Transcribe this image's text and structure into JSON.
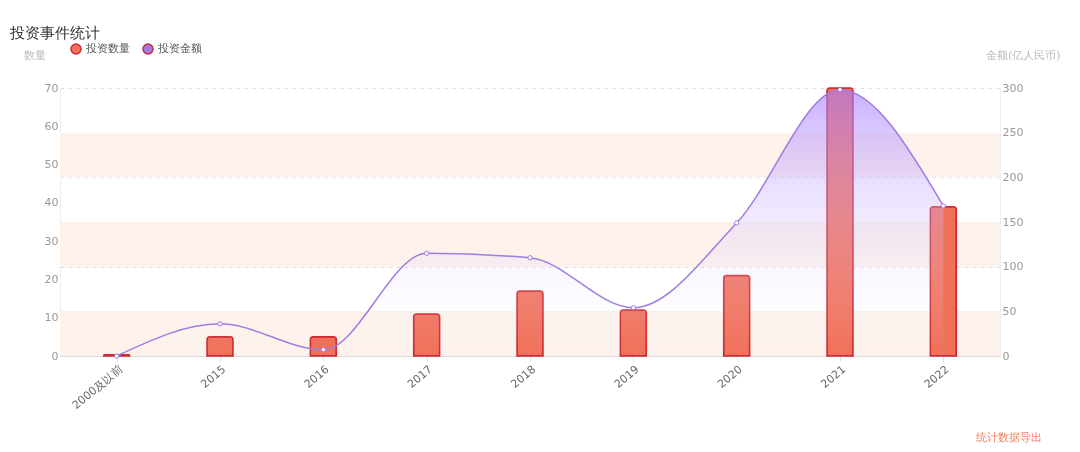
{
  "chart_data": {
    "type": "bar",
    "title": "投资事件统计",
    "categories": [
      "2000及以前",
      "2015",
      "2016",
      "2017",
      "2018",
      "2019",
      "2020",
      "2021",
      "2022"
    ],
    "series": [
      {
        "name": "投资数量",
        "color": "#f0705a",
        "values": [
          0.3,
          5,
          5,
          11,
          17,
          12,
          21,
          70,
          39
        ]
      },
      {
        "name": "投资金额",
        "type": "area",
        "axis": "y2",
        "color": "#a07ce0",
        "values": [
          0,
          36,
          7,
          115,
          110,
          54,
          149,
          298,
          168
        ]
      }
    ],
    "ylabel": "数量",
    "y2label": "金额(亿人民币)",
    "ylim": [
      0,
      70
    ],
    "yticks": [
      0,
      10,
      20,
      30,
      40,
      50,
      60,
      70
    ],
    "y2lim": [
      0,
      300
    ],
    "y2ticks": [
      0,
      50,
      100,
      150,
      200,
      250,
      300
    ],
    "bands": [
      {
        "axis": "y2",
        "from": 0,
        "to": 50,
        "color": "#fdf3ec"
      },
      {
        "axis": "y2",
        "from": 100,
        "to": 150,
        "color": "#fdf3ec"
      },
      {
        "axis": "y2",
        "from": 200,
        "to": 250,
        "color": "#fdf3ec"
      }
    ],
    "grid": true,
    "legend": "top left",
    "marker": "circle",
    "annotations": [
      "统计数据导出"
    ]
  }
}
